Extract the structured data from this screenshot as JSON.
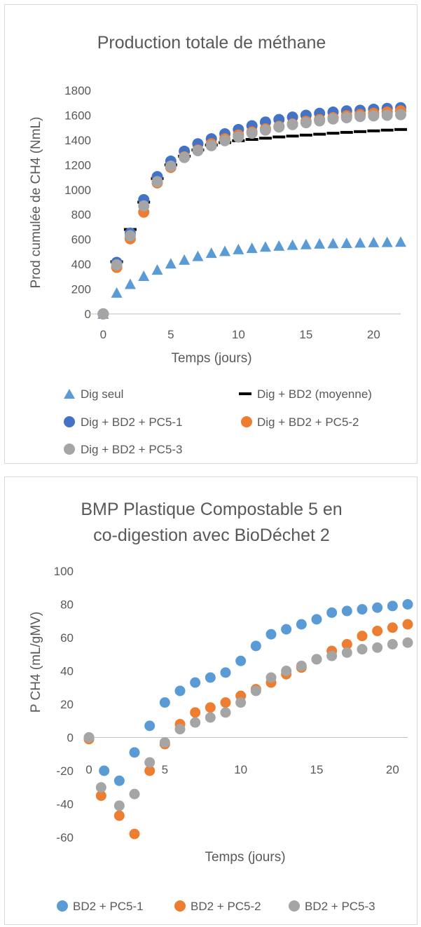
{
  "chart_data": [
    {
      "type": "scatter",
      "title": "Production totale de méthane",
      "xlabel": "Temps (jours)",
      "ylabel": "Prod cumulée de CH4 (NmL)",
      "xlim": [
        -1,
        22
      ],
      "ylim": [
        0,
        1800
      ],
      "xticks": [
        "0",
        "5",
        "10",
        "15",
        "20"
      ],
      "yticks": [
        "0",
        "200",
        "400",
        "600",
        "800",
        "1000",
        "1200",
        "1400",
        "1600",
        "1800"
      ],
      "grid": false,
      "legend_position": "bottom",
      "series": [
        {
          "name": "Dig seul",
          "marker": "triangle",
          "color": "#5B9BD5",
          "x": [
            0,
            1,
            2,
            3,
            4,
            5,
            6,
            7,
            8,
            9,
            10,
            11,
            12,
            13,
            14,
            15,
            16,
            17,
            18,
            19,
            20,
            21,
            22
          ],
          "y": [
            0,
            170,
            240,
            305,
            355,
            405,
            435,
            465,
            490,
            505,
            520,
            530,
            540,
            548,
            555,
            560,
            565,
            568,
            570,
            573,
            576,
            578,
            580
          ]
        },
        {
          "name": "Dig + BD2 (moyenne)",
          "marker": "dash",
          "color": "#000000",
          "x": [
            1,
            2,
            3,
            4,
            5,
            6,
            7,
            8,
            9,
            10,
            11,
            12,
            13,
            14,
            15,
            16,
            17,
            18,
            19,
            20,
            21,
            22
          ],
          "y": [
            420,
            680,
            900,
            1090,
            1200,
            1270,
            1320,
            1360,
            1380,
            1395,
            1405,
            1415,
            1425,
            1432,
            1440,
            1447,
            1455,
            1462,
            1468,
            1474,
            1480,
            1485
          ]
        },
        {
          "name": "Dig + BD2 + PC5-1",
          "marker": "circle",
          "color": "#4472C4",
          "x": [
            0,
            1,
            2,
            3,
            4,
            5,
            6,
            7,
            8,
            9,
            10,
            11,
            12,
            13,
            14,
            15,
            16,
            17,
            18,
            19,
            20,
            21,
            22
          ],
          "y": [
            0,
            415,
            650,
            920,
            1105,
            1230,
            1310,
            1370,
            1410,
            1450,
            1485,
            1515,
            1545,
            1565,
            1585,
            1600,
            1615,
            1625,
            1635,
            1640,
            1648,
            1655,
            1660
          ]
        },
        {
          "name": "Dig + BD2 + PC5-2",
          "marker": "circle",
          "color": "#ED7D31",
          "x": [
            0,
            1,
            2,
            3,
            4,
            5,
            6,
            7,
            8,
            9,
            10,
            11,
            12,
            13,
            14,
            15,
            16,
            17,
            18,
            19,
            20,
            21,
            22
          ],
          "y": [
            0,
            375,
            605,
            820,
            1055,
            1180,
            1265,
            1320,
            1370,
            1410,
            1440,
            1465,
            1490,
            1510,
            1530,
            1550,
            1565,
            1580,
            1595,
            1605,
            1615,
            1625,
            1635
          ]
        },
        {
          "name": "Dig + BD2 + PC5-3",
          "marker": "circle",
          "color": "#A5A5A5",
          "x": [
            0,
            1,
            2,
            3,
            4,
            5,
            6,
            7,
            8,
            9,
            10,
            11,
            12,
            13,
            14,
            15,
            16,
            17,
            18,
            19,
            20,
            21,
            22
          ],
          "y": [
            0,
            395,
            630,
            870,
            1065,
            1190,
            1260,
            1315,
            1355,
            1395,
            1425,
            1455,
            1480,
            1505,
            1525,
            1540,
            1555,
            1570,
            1580,
            1590,
            1595,
            1600,
            1605
          ]
        }
      ]
    },
    {
      "type": "scatter",
      "title_lines": [
        "BMP Plastique Compostable 5 en",
        "co-digestion avec BioDéchet 2"
      ],
      "xlabel": "Temps (jours)",
      "ylabel": "P CH4 (mL/gMV)",
      "xlim": [
        0,
        21
      ],
      "ylim": [
        -60,
        100
      ],
      "xticks": [
        "0",
        "5",
        "10",
        "15",
        "20"
      ],
      "yticks": [
        "-60",
        "-40",
        "-20",
        "0",
        "20",
        "40",
        "60",
        "80",
        "100"
      ],
      "grid": false,
      "legend_position": "bottom",
      "series": [
        {
          "name": "BD2 + PC5-1",
          "marker": "circle",
          "color": "#5B9BD5",
          "x": [
            0,
            1,
            2,
            3,
            4,
            5,
            6,
            7,
            8,
            9,
            10,
            11,
            12,
            13,
            14,
            15,
            16,
            17,
            18,
            19,
            20,
            21
          ],
          "y": [
            0,
            -20,
            -26,
            -9,
            7,
            21,
            28,
            33,
            36,
            39,
            46,
            55,
            62,
            65,
            68,
            71,
            75,
            76,
            77,
            78,
            79,
            80
          ]
        },
        {
          "name": "BD2 + PC5-2",
          "marker": "circle",
          "color": "#ED7D31",
          "x": [
            0,
            0.8,
            2,
            3,
            4,
            5,
            6,
            7,
            8,
            9,
            10,
            11,
            12,
            13,
            14,
            15,
            16,
            17,
            18,
            19,
            20,
            21
          ],
          "y": [
            -1,
            -35,
            -47,
            -58,
            -20,
            -4,
            8,
            15,
            18,
            21,
            25,
            29,
            33,
            38,
            42,
            47,
            52,
            56,
            61,
            64,
            66,
            68
          ]
        },
        {
          "name": "BD2 + PC5-3",
          "marker": "circle",
          "color": "#A5A5A5",
          "x": [
            0,
            0.8,
            2,
            3,
            4,
            5,
            6,
            7,
            8,
            9,
            10,
            11,
            12,
            13,
            14,
            15,
            16,
            17,
            18,
            19,
            20,
            21
          ],
          "y": [
            0,
            -30,
            -41,
            -34,
            -15,
            -3,
            5,
            9,
            12,
            15,
            21,
            28,
            36,
            40,
            43,
            47,
            49,
            51,
            53,
            54,
            56,
            57
          ]
        }
      ]
    }
  ]
}
